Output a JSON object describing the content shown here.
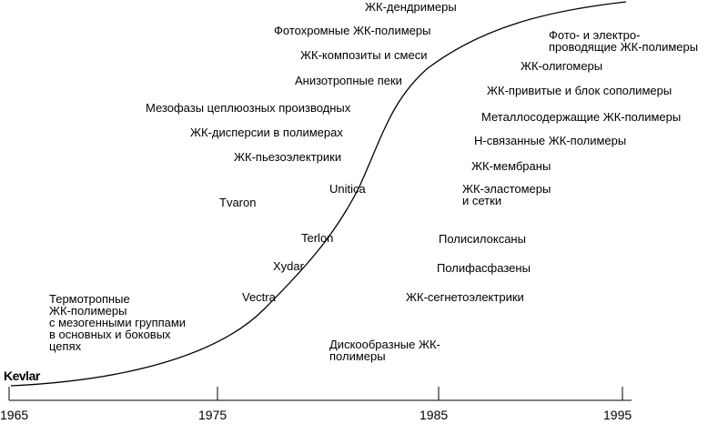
{
  "timeline": {
    "years": [
      "1965",
      "1975",
      "1985",
      "1995"
    ]
  },
  "start_label": "Kevlar",
  "curve_labels": [
    "Vectra",
    "Xydar",
    "Terlon",
    "Unitica",
    "Tvaron"
  ],
  "left_items": [
    "ЖК-пьезоэлектрики",
    "ЖК-дисперсии в полимерах",
    "Мезофазы цеплюозных производных",
    "Анизотропные пеки",
    "ЖК-композиты и смеси",
    "Фотохромные ЖК-полимеры",
    "ЖК-дендримеры"
  ],
  "thermotropic_note": "Термотропные\nЖК-полимеры\nс мезогенными группами\nв основных и боковых\nцепях",
  "right_items": [
    "Фото- и электро-\nпроводящие ЖК-полимеры",
    "ЖК-олигомеры",
    "ЖК-привитые и блок сополимеры",
    "Металлосодержащие ЖК-полимеры",
    "Н-связанные ЖК-полимеры",
    "ЖК-мембраны",
    "ЖК-эластомеры\nи сетки",
    "Полисилоксаны",
    "Полифасфазены",
    "ЖК-сегнетоэлектрики",
    "Дискообразные ЖК-\nполимеры"
  ],
  "colors": {
    "ink": "#000000",
    "background": "#ffffff"
  }
}
